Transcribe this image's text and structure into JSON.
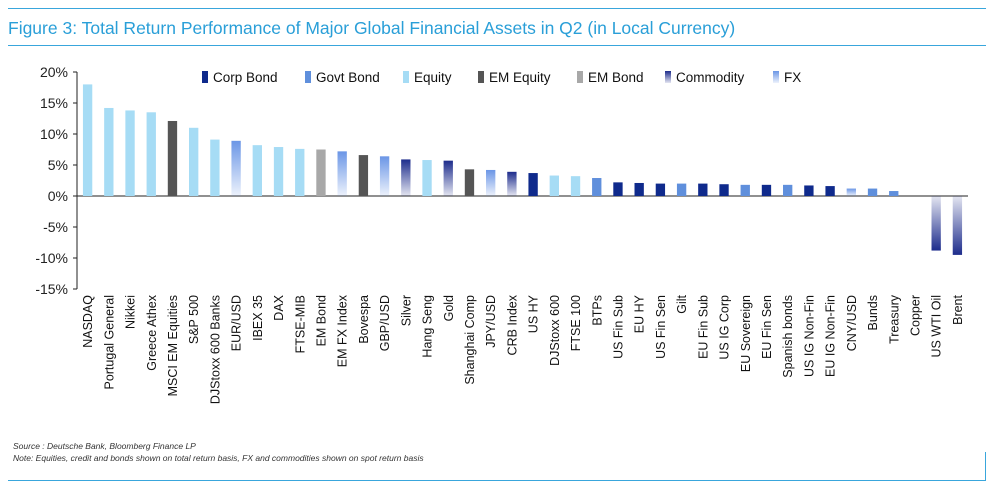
{
  "figure": {
    "title": "Figure 3: Total Return Performance of Major Global Financial Assets in Q2 (in Local Currency)",
    "source": "Source : Deutsche Bank, Bloomberg Finance LP",
    "note": "Note: Equities, credit and bonds shown on total return basis, FX and commodities shown on spot return basis"
  },
  "colors": {
    "corp_bond": "#0f2a8c",
    "govt_bond": "#5f8fdc",
    "equity": "#a6dcf5",
    "em_equity": "#555555",
    "em_bond": "#a8a8a8",
    "commodity": "#1d2c8c",
    "fx": "#6b96e6",
    "title": "#2a9fd8"
  },
  "chart_data": {
    "type": "bar",
    "title": "Figure 3: Total Return Performance of Major Global Financial Assets in Q2 (in Local Currency)",
    "xlabel": "",
    "ylabel": "",
    "ylim": [
      -15,
      20
    ],
    "yticks": [
      -15,
      -10,
      -5,
      0,
      5,
      10,
      15,
      20
    ],
    "ytick_labels": [
      "-15%",
      "-10%",
      "-5%",
      "0%",
      "5%",
      "10%",
      "15%",
      "20%"
    ],
    "grid": false,
    "legend_position": "top",
    "legend": [
      {
        "key": "corp_bond",
        "label": "Corp Bond",
        "style": "solid"
      },
      {
        "key": "govt_bond",
        "label": "Govt Bond",
        "style": "solid"
      },
      {
        "key": "equity",
        "label": "Equity",
        "style": "solid"
      },
      {
        "key": "em_equity",
        "label": "EM Equity",
        "style": "solid"
      },
      {
        "key": "em_bond",
        "label": "EM Bond",
        "style": "solid"
      },
      {
        "key": "commodity",
        "label": "Commodity",
        "style": "gradient"
      },
      {
        "key": "fx",
        "label": "FX",
        "style": "gradient"
      }
    ],
    "categories": [
      "NASDAQ",
      "Portugal General",
      "Nikkei",
      "Greece Athex",
      "MSCI EM Equities",
      "S&P 500",
      "DJStoxx 600 Banks",
      "EUR/USD",
      "IBEX 35",
      "DAX",
      "FTSE-MIB",
      "EM Bond",
      "EM FX Index",
      "Bovespa",
      "GBP/USD",
      "Silver",
      "Hang Seng",
      "Gold",
      "Shanghai Comp",
      "JPY/USD",
      "CRB Index",
      "US HY",
      "DJStoxx 600",
      "FTSE 100",
      "BTPs",
      "US Fin Sub",
      "EU HY",
      "US Fin Sen",
      "Gilt",
      "EU Fin Sub",
      "US IG Corp",
      "EU Sovereign",
      "EU Fin Sen",
      "Spanish bonds",
      "US IG Non-Fin",
      "EU IG Non-Fin",
      "CNY/USD",
      "Bunds",
      "Treasury",
      "Copper",
      "US WTI Oil",
      "Brent"
    ],
    "values": [
      18.0,
      14.2,
      13.8,
      13.5,
      12.1,
      11.0,
      9.1,
      8.9,
      8.2,
      7.9,
      7.6,
      7.5,
      7.2,
      6.6,
      6.4,
      5.9,
      5.8,
      5.7,
      4.3,
      4.2,
      3.9,
      3.7,
      3.3,
      3.2,
      2.9,
      2.2,
      2.1,
      2.0,
      2.0,
      2.0,
      1.9,
      1.8,
      1.8,
      1.8,
      1.7,
      1.6,
      1.2,
      1.2,
      0.8,
      0.0,
      -8.8,
      -9.5
    ],
    "classes": [
      "equity",
      "equity",
      "equity",
      "equity",
      "em_equity",
      "equity",
      "equity",
      "fx",
      "equity",
      "equity",
      "equity",
      "em_bond",
      "fx",
      "em_equity",
      "fx",
      "commodity",
      "equity",
      "commodity",
      "em_equity",
      "fx",
      "commodity",
      "corp_bond",
      "equity",
      "equity",
      "govt_bond",
      "corp_bond",
      "corp_bond",
      "corp_bond",
      "govt_bond",
      "corp_bond",
      "corp_bond",
      "govt_bond",
      "corp_bond",
      "govt_bond",
      "corp_bond",
      "corp_bond",
      "fx",
      "govt_bond",
      "govt_bond",
      "commodity",
      "commodity",
      "commodity"
    ]
  }
}
